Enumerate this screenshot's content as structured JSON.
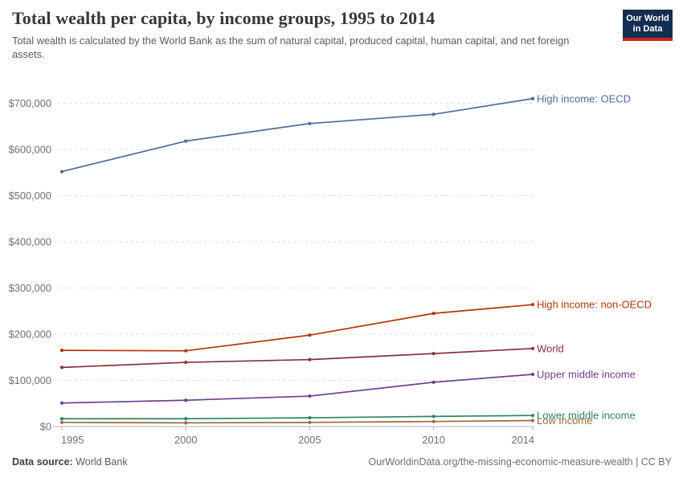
{
  "header": {
    "title": "Total wealth per capita, by income groups, 1995 to 2014",
    "subtitle": "Total wealth is calculated by the World Bank as the sum of natural capital, produced capital, human capital, and net foreign assets.",
    "logo": {
      "line1": "Our World",
      "line2": "in Data",
      "bg_color": "#142E52",
      "accent_color": "#C5281C"
    }
  },
  "chart_data": {
    "type": "line",
    "title": "Total wealth per capita, by income groups, 1995 to 2014",
    "xlabel": "",
    "ylabel": "",
    "x": [
      1995,
      2000,
      2005,
      2010,
      2014
    ],
    "x_tick_labels": [
      "1995",
      "2000",
      "2005",
      "2010",
      "2014"
    ],
    "xlim": [
      1995,
      2014
    ],
    "y_ticks": [
      0,
      100000,
      200000,
      300000,
      400000,
      500000,
      600000,
      700000
    ],
    "y_tick_labels": [
      "$0",
      "$100,000",
      "$200,000",
      "$300,000",
      "$400,000",
      "$500,000",
      "$600,000",
      "$700,000"
    ],
    "ylim": [
      0,
      720000
    ],
    "grid": "horizontal-dashed",
    "legend_position": "right-end-labels",
    "marker": "point-per-year",
    "series": [
      {
        "name": "High income: OECD",
        "color": "#4C6A9C",
        "values": [
          552000,
          618000,
          656000,
          676000,
          710000
        ]
      },
      {
        "name": "High income: non-OECD",
        "color": "#B13507",
        "values": [
          165000,
          164000,
          198000,
          245000,
          264000
        ]
      },
      {
        "name": "World",
        "color": "#883039",
        "values": [
          128000,
          139000,
          145000,
          158000,
          169000
        ]
      },
      {
        "name": "Upper middle income",
        "color": "#6D3E91",
        "values": [
          51000,
          57000,
          66000,
          96000,
          113000
        ]
      },
      {
        "name": "Lower middle income",
        "color": "#2C8465",
        "values": [
          17000,
          17000,
          19000,
          22000,
          24000
        ]
      },
      {
        "name": "Low income",
        "color": "#996D39",
        "values": [
          9000,
          8000,
          9000,
          11000,
          13000
        ]
      }
    ]
  },
  "footer": {
    "source_label": "Data source:",
    "source_value": " World Bank",
    "credit": "OurWorldinData.org/the-missing-economic-measure-wealth | CC BY"
  }
}
